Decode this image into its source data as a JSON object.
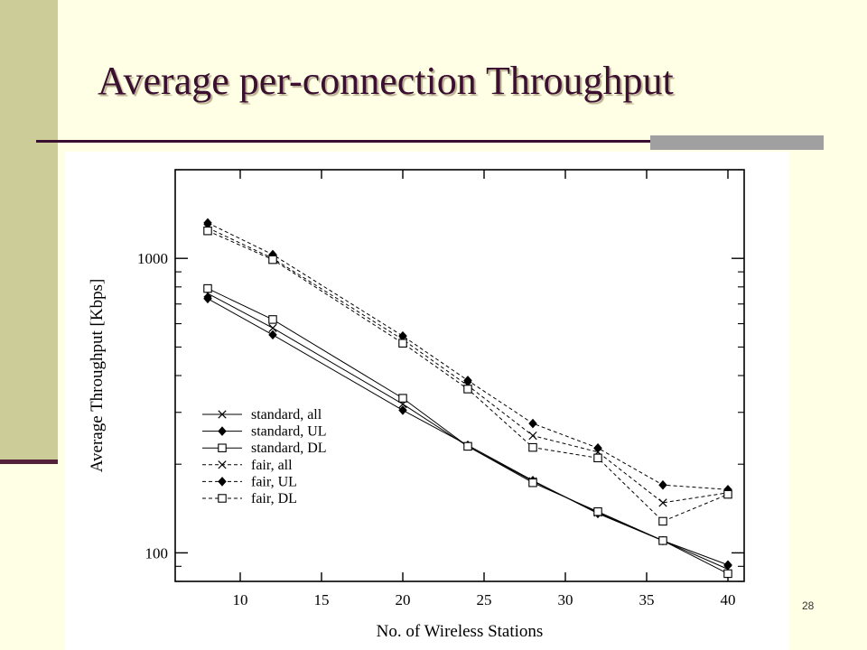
{
  "slide": {
    "title": "Average per-connection Throughput",
    "page_number": "28"
  },
  "colors": {
    "title": "#3b0f30",
    "left_band": "#cccc99",
    "background": "#ffffe5",
    "accent": "#a0a0a0"
  },
  "chart_data": {
    "type": "line",
    "title": "",
    "xlabel": "No. of Wireless Stations",
    "ylabel": "Average Throughput [Kbps]",
    "x_ticks": [
      10,
      15,
      20,
      25,
      30,
      35,
      40
    ],
    "y_ticks": [
      100,
      1000
    ],
    "y_scale": "log",
    "xlim": [
      6,
      41
    ],
    "ylim": [
      80,
      2000
    ],
    "grid": false,
    "legend_position": "center-left",
    "x": [
      8,
      12,
      20,
      24,
      28,
      32,
      36,
      40
    ],
    "series": [
      {
        "name": "standard, all",
        "marker": "x",
        "dash": "solid",
        "values": [
          760,
          580,
          320,
          230,
          175,
          137,
          110,
          88
        ]
      },
      {
        "name": "standard, UL",
        "marker": "diamond",
        "dash": "solid",
        "values": [
          730,
          550,
          305,
          232,
          176,
          136,
          110,
          91
        ]
      },
      {
        "name": "standard, DL",
        "marker": "square",
        "dash": "solid",
        "values": [
          790,
          620,
          335,
          230,
          173,
          138,
          110,
          85
        ]
      },
      {
        "name": "fair, all",
        "marker": "x",
        "dash": "dashed",
        "values": [
          1270,
          1000,
          530,
          370,
          250,
          220,
          148,
          160
        ]
      },
      {
        "name": "fair, UL",
        "marker": "diamond",
        "dash": "dashed",
        "values": [
          1320,
          1030,
          545,
          385,
          275,
          227,
          170,
          164
        ]
      },
      {
        "name": "fair, DL",
        "marker": "square",
        "dash": "dashed",
        "values": [
          1240,
          990,
          515,
          360,
          228,
          210,
          128,
          158
        ]
      }
    ]
  }
}
